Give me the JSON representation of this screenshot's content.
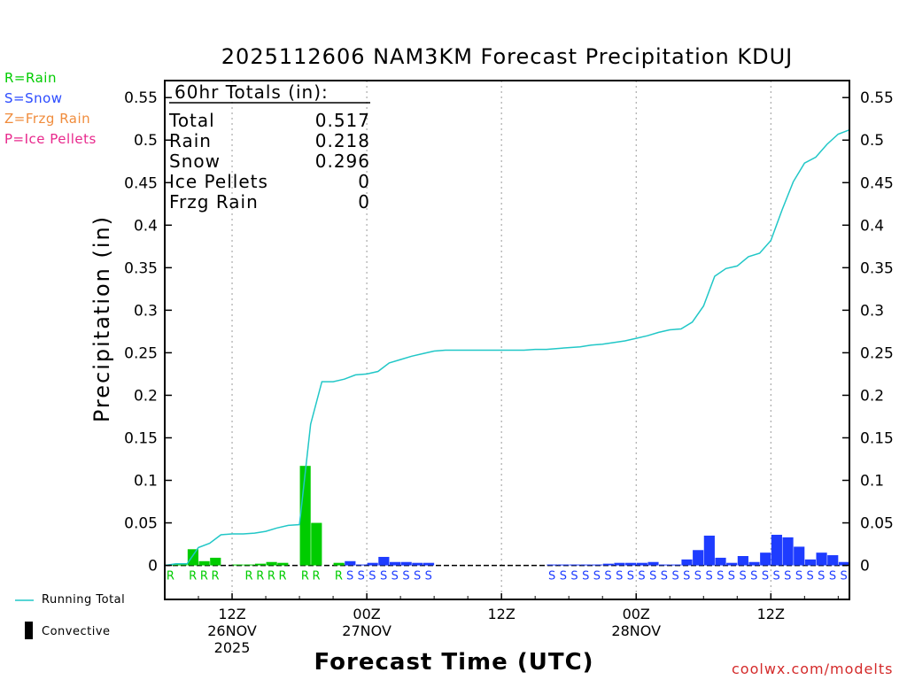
{
  "title": "2025112606 NAM3KM Forecast Precipitation KDUJ",
  "legend": [
    {
      "text": "R=Rain",
      "color": "#00cc00"
    },
    {
      "text": "S=Snow",
      "color": "#2b4bff"
    },
    {
      "text": "Z=Frzg Rain",
      "color": "#f08c3c"
    },
    {
      "text": "P=Ice Pellets",
      "color": "#e8288c"
    }
  ],
  "totals": {
    "header": "60hr Totals (in):",
    "rows": [
      {
        "label": "Total",
        "value": "0.517"
      },
      {
        "label": "Rain",
        "value": "0.218"
      },
      {
        "label": "Snow",
        "value": "0.296"
      },
      {
        "label": "Ice Pellets",
        "value": "0"
      },
      {
        "label": "Frzg Rain",
        "value": "0"
      }
    ]
  },
  "bottom_legend": {
    "running_total": "Running Total",
    "convective": "Convective"
  },
  "credit": "coolwx.com/modelts",
  "colors": {
    "rain": "#00cc00",
    "snow": "#1e3cff",
    "running_total": "#21c7c7",
    "credit": "#d42a2a"
  },
  "chart_data": {
    "type": "bar",
    "title": "2025112606 NAM3KM Forecast Precipitation KDUJ",
    "xlabel": "Forecast Time (UTC)",
    "ylabel": "Precipitation (in)",
    "ylim": [
      -0.04,
      0.57
    ],
    "yticks": [
      "0",
      "0.05",
      "0.1",
      "0.15",
      "0.2",
      "0.25",
      "0.3",
      "0.35",
      "0.4",
      "0.45",
      "0.5",
      "0.55"
    ],
    "xlim_hours": [
      0,
      61
    ],
    "xticks": [
      {
        "hour": 6,
        "lines": [
          "12Z",
          "26NOV",
          "2025"
        ]
      },
      {
        "hour": 18,
        "lines": [
          "00Z",
          "27NOV"
        ]
      },
      {
        "hour": 30,
        "lines": [
          "12Z"
        ]
      },
      {
        "hour": 42,
        "lines": [
          "00Z",
          "28NOV"
        ]
      },
      {
        "hour": 54,
        "lines": [
          "12Z"
        ]
      }
    ],
    "bars": [
      {
        "hour": 1,
        "value": 0.001,
        "type": "R"
      },
      {
        "hour": 2,
        "value": 0.001,
        "type": "R"
      },
      {
        "hour": 3,
        "value": 0.019,
        "type": "R"
      },
      {
        "hour": 4,
        "value": 0.005,
        "type": "R"
      },
      {
        "hour": 5,
        "value": 0.009,
        "type": "R"
      },
      {
        "hour": 7,
        "value": 0.0005,
        "type": "R"
      },
      {
        "hour": 8,
        "value": 0.0005,
        "type": "R"
      },
      {
        "hour": 9,
        "value": 0.002,
        "type": "R"
      },
      {
        "hour": 10,
        "value": 0.004,
        "type": "R"
      },
      {
        "hour": 11,
        "value": 0.003,
        "type": "R"
      },
      {
        "hour": 13,
        "value": 0.117,
        "type": "R"
      },
      {
        "hour": 14,
        "value": 0.05,
        "type": "R"
      },
      {
        "hour": 16,
        "value": 0.003,
        "type": "R"
      },
      {
        "hour": 17,
        "value": 0.005,
        "type": "S"
      },
      {
        "hour": 18,
        "value": 0.001,
        "type": "S"
      },
      {
        "hour": 19,
        "value": 0.003,
        "type": "S"
      },
      {
        "hour": 20,
        "value": 0.01,
        "type": "S"
      },
      {
        "hour": 21,
        "value": 0.004,
        "type": "S"
      },
      {
        "hour": 22,
        "value": 0.004,
        "type": "S"
      },
      {
        "hour": 23,
        "value": 0.003,
        "type": "S"
      },
      {
        "hour": 24,
        "value": 0.003,
        "type": "S"
      },
      {
        "hour": 35,
        "value": 0.0005,
        "type": "S"
      },
      {
        "hour": 36,
        "value": 0.0005,
        "type": "S"
      },
      {
        "hour": 37,
        "value": 0.0005,
        "type": "S"
      },
      {
        "hour": 38,
        "value": 0.0005,
        "type": "S"
      },
      {
        "hour": 39,
        "value": 0.001,
        "type": "S"
      },
      {
        "hour": 40,
        "value": 0.002,
        "type": "S"
      },
      {
        "hour": 41,
        "value": 0.003,
        "type": "S"
      },
      {
        "hour": 42,
        "value": 0.003,
        "type": "S"
      },
      {
        "hour": 43,
        "value": 0.003,
        "type": "S"
      },
      {
        "hour": 44,
        "value": 0.004,
        "type": "S"
      },
      {
        "hour": 45,
        "value": 0.001,
        "type": "S"
      },
      {
        "hour": 46,
        "value": 0.001,
        "type": "S"
      },
      {
        "hour": 47,
        "value": 0.007,
        "type": "S"
      },
      {
        "hour": 48,
        "value": 0.018,
        "type": "S"
      },
      {
        "hour": 49,
        "value": 0.035,
        "type": "S"
      },
      {
        "hour": 50,
        "value": 0.009,
        "type": "S"
      },
      {
        "hour": 51,
        "value": 0.003,
        "type": "S"
      },
      {
        "hour": 52,
        "value": 0.011,
        "type": "S"
      },
      {
        "hour": 53,
        "value": 0.004,
        "type": "S"
      },
      {
        "hour": 54,
        "value": 0.015,
        "type": "S"
      },
      {
        "hour": 55,
        "value": 0.036,
        "type": "S"
      },
      {
        "hour": 56,
        "value": 0.033,
        "type": "S"
      },
      {
        "hour": 57,
        "value": 0.022,
        "type": "S"
      },
      {
        "hour": 58,
        "value": 0.007,
        "type": "S"
      },
      {
        "hour": 59,
        "value": 0.015,
        "type": "S"
      },
      {
        "hour": 60,
        "value": 0.012,
        "type": "S"
      },
      {
        "hour": 61,
        "value": 0.004,
        "type": "S"
      }
    ],
    "ptype_row": [
      {
        "hour": 1,
        "label": "R",
        "type": "rain"
      },
      {
        "hour": 3,
        "label": "R",
        "type": "rain"
      },
      {
        "hour": 4,
        "label": "R",
        "type": "rain"
      },
      {
        "hour": 5,
        "label": "R",
        "type": "rain"
      },
      {
        "hour": 8,
        "label": "R",
        "type": "rain"
      },
      {
        "hour": 9,
        "label": "R",
        "type": "rain"
      },
      {
        "hour": 10,
        "label": "R",
        "type": "rain"
      },
      {
        "hour": 11,
        "label": "R",
        "type": "rain"
      },
      {
        "hour": 13,
        "label": "R",
        "type": "rain"
      },
      {
        "hour": 14,
        "label": "R",
        "type": "rain"
      },
      {
        "hour": 16,
        "label": "R",
        "type": "rain"
      },
      {
        "hour": 17,
        "label": "S",
        "type": "snow"
      },
      {
        "hour": 18,
        "label": "S",
        "type": "snow"
      },
      {
        "hour": 19,
        "label": "S",
        "type": "snow"
      },
      {
        "hour": 20,
        "label": "S",
        "type": "snow"
      },
      {
        "hour": 21,
        "label": "S",
        "type": "snow"
      },
      {
        "hour": 22,
        "label": "S",
        "type": "snow"
      },
      {
        "hour": 23,
        "label": "S",
        "type": "snow"
      },
      {
        "hour": 24,
        "label": "S",
        "type": "snow"
      },
      {
        "hour": 35,
        "label": "S",
        "type": "snow"
      },
      {
        "hour": 36,
        "label": "S",
        "type": "snow"
      },
      {
        "hour": 37,
        "label": "S",
        "type": "snow"
      },
      {
        "hour": 38,
        "label": "S",
        "type": "snow"
      },
      {
        "hour": 39,
        "label": "S",
        "type": "snow"
      },
      {
        "hour": 40,
        "label": "S",
        "type": "snow"
      },
      {
        "hour": 41,
        "label": "S",
        "type": "snow"
      },
      {
        "hour": 42,
        "label": "S",
        "type": "snow"
      },
      {
        "hour": 43,
        "label": "S",
        "type": "snow"
      },
      {
        "hour": 44,
        "label": "S",
        "type": "snow"
      },
      {
        "hour": 45,
        "label": "S",
        "type": "snow"
      },
      {
        "hour": 46,
        "label": "S",
        "type": "snow"
      },
      {
        "hour": 47,
        "label": "S",
        "type": "snow"
      },
      {
        "hour": 48,
        "label": "S",
        "type": "snow"
      },
      {
        "hour": 49,
        "label": "S",
        "type": "snow"
      },
      {
        "hour": 50,
        "label": "S",
        "type": "snow"
      },
      {
        "hour": 51,
        "label": "S",
        "type": "snow"
      },
      {
        "hour": 52,
        "label": "S",
        "type": "snow"
      },
      {
        "hour": 53,
        "label": "S",
        "type": "snow"
      },
      {
        "hour": 54,
        "label": "S",
        "type": "snow"
      },
      {
        "hour": 55,
        "label": "S",
        "type": "snow"
      },
      {
        "hour": 56,
        "label": "S",
        "type": "snow"
      },
      {
        "hour": 57,
        "label": "S",
        "type": "snow"
      },
      {
        "hour": 58,
        "label": "S",
        "type": "snow"
      },
      {
        "hour": 59,
        "label": "S",
        "type": "snow"
      },
      {
        "hour": 60,
        "label": "S",
        "type": "snow"
      },
      {
        "hour": 61,
        "label": "S",
        "type": "snow"
      }
    ],
    "running_total": [
      [
        0,
        0
      ],
      [
        1,
        0.002
      ],
      [
        2,
        0.002
      ],
      [
        3,
        0.021
      ],
      [
        4,
        0.026
      ],
      [
        5,
        0.036
      ],
      [
        6,
        0.037
      ],
      [
        7,
        0.037
      ],
      [
        8,
        0.038
      ],
      [
        9,
        0.04
      ],
      [
        10,
        0.044
      ],
      [
        11,
        0.047
      ],
      [
        12,
        0.048
      ],
      [
        13,
        0.166
      ],
      [
        14,
        0.216
      ],
      [
        15,
        0.216
      ],
      [
        16,
        0.219
      ],
      [
        17,
        0.224
      ],
      [
        18,
        0.225
      ],
      [
        19,
        0.228
      ],
      [
        20,
        0.238
      ],
      [
        21,
        0.242
      ],
      [
        22,
        0.246
      ],
      [
        23,
        0.249
      ],
      [
        24,
        0.252
      ],
      [
        25,
        0.253
      ],
      [
        26,
        0.253
      ],
      [
        27,
        0.253
      ],
      [
        28,
        0.253
      ],
      [
        29,
        0.253
      ],
      [
        30,
        0.253
      ],
      [
        31,
        0.253
      ],
      [
        32,
        0.253
      ],
      [
        33,
        0.254
      ],
      [
        34,
        0.254
      ],
      [
        35,
        0.255
      ],
      [
        36,
        0.256
      ],
      [
        37,
        0.257
      ],
      [
        38,
        0.259
      ],
      [
        39,
        0.26
      ],
      [
        40,
        0.262
      ],
      [
        41,
        0.264
      ],
      [
        42,
        0.267
      ],
      [
        43,
        0.27
      ],
      [
        44,
        0.274
      ],
      [
        45,
        0.277
      ],
      [
        46,
        0.278
      ],
      [
        47,
        0.286
      ],
      [
        48,
        0.305
      ],
      [
        49,
        0.34
      ],
      [
        50,
        0.349
      ],
      [
        51,
        0.352
      ],
      [
        52,
        0.363
      ],
      [
        53,
        0.367
      ],
      [
        54,
        0.382
      ],
      [
        55,
        0.418
      ],
      [
        56,
        0.451
      ],
      [
        57,
        0.473
      ],
      [
        58,
        0.48
      ],
      [
        59,
        0.495
      ],
      [
        60,
        0.507
      ],
      [
        61,
        0.512
      ]
    ]
  }
}
